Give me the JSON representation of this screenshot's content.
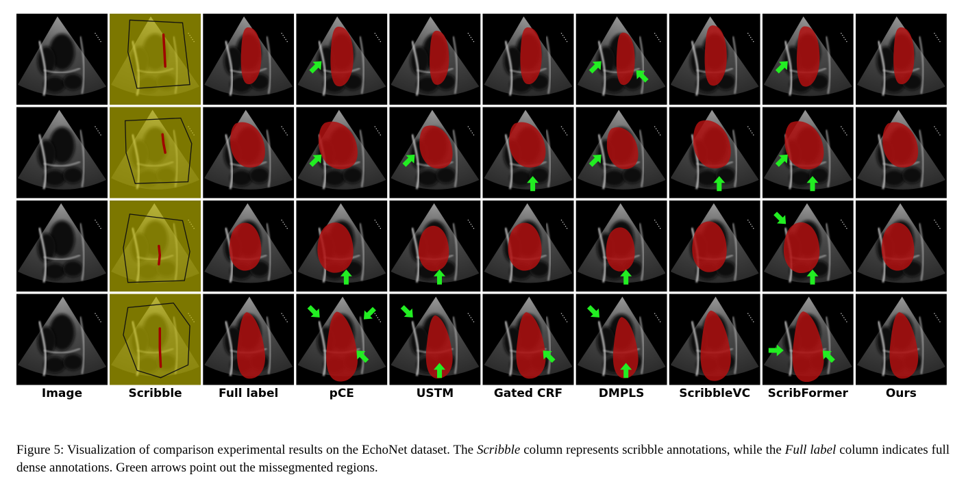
{
  "figure": {
    "columns": [
      {
        "label": "Image",
        "kind": "image"
      },
      {
        "label": "Scribble",
        "kind": "scribble"
      },
      {
        "label": "Full label",
        "kind": "label"
      },
      {
        "label": "pCE",
        "kind": "pred"
      },
      {
        "label": "USTM",
        "kind": "pred"
      },
      {
        "label": "Gated CRF",
        "kind": "pred"
      },
      {
        "label": "DMPLS",
        "kind": "pred"
      },
      {
        "label": "ScribbleVC",
        "kind": "pred"
      },
      {
        "label": "ScribFormer",
        "kind": "pred"
      },
      {
        "label": "Ours",
        "kind": "pred"
      }
    ],
    "rows": 4,
    "arrows": [
      {
        "row": 0,
        "col": 3,
        "dir": "ne"
      },
      {
        "row": 0,
        "col": 6,
        "dir": "ne"
      },
      {
        "row": 0,
        "col": 6,
        "dir": "nw"
      },
      {
        "row": 0,
        "col": 8,
        "dir": "ne"
      },
      {
        "row": 1,
        "col": 3,
        "dir": "ne"
      },
      {
        "row": 1,
        "col": 4,
        "dir": "ne"
      },
      {
        "row": 1,
        "col": 5,
        "dir": "n"
      },
      {
        "row": 1,
        "col": 6,
        "dir": "ne"
      },
      {
        "row": 1,
        "col": 7,
        "dir": "n"
      },
      {
        "row": 1,
        "col": 8,
        "dir": "ne"
      },
      {
        "row": 1,
        "col": 8,
        "dir": "n"
      },
      {
        "row": 2,
        "col": 3,
        "dir": "n"
      },
      {
        "row": 2,
        "col": 4,
        "dir": "n"
      },
      {
        "row": 2,
        "col": 6,
        "dir": "n"
      },
      {
        "row": 2,
        "col": 8,
        "dir": "se"
      },
      {
        "row": 2,
        "col": 8,
        "dir": "n"
      },
      {
        "row": 3,
        "col": 3,
        "dir": "se"
      },
      {
        "row": 3,
        "col": 3,
        "dir": "sw"
      },
      {
        "row": 3,
        "col": 3,
        "dir": "nw"
      },
      {
        "row": 3,
        "col": 4,
        "dir": "se"
      },
      {
        "row": 3,
        "col": 4,
        "dir": "n"
      },
      {
        "row": 3,
        "col": 5,
        "dir": "nw"
      },
      {
        "row": 3,
        "col": 6,
        "dir": "se"
      },
      {
        "row": 3,
        "col": 6,
        "dir": "n"
      },
      {
        "row": 3,
        "col": 8,
        "dir": "e"
      },
      {
        "row": 3,
        "col": 8,
        "dir": "nw"
      }
    ]
  },
  "caption": {
    "prefix": "Figure 5: Visualization of comparison experimental results on the EchoNet dataset. The ",
    "italic1": "Scribble",
    "mid": " column represents scribble annotations, while the ",
    "italic2": "Full label",
    "suffix": " column indicates full dense annotations. Green arrows point out the missegmented regions."
  },
  "colors": {
    "mask": "#b01010",
    "scribble_overlay": "#c8c000",
    "scribble_stroke": "#a00000",
    "arrow": "#22ee22",
    "background": "#000000"
  }
}
